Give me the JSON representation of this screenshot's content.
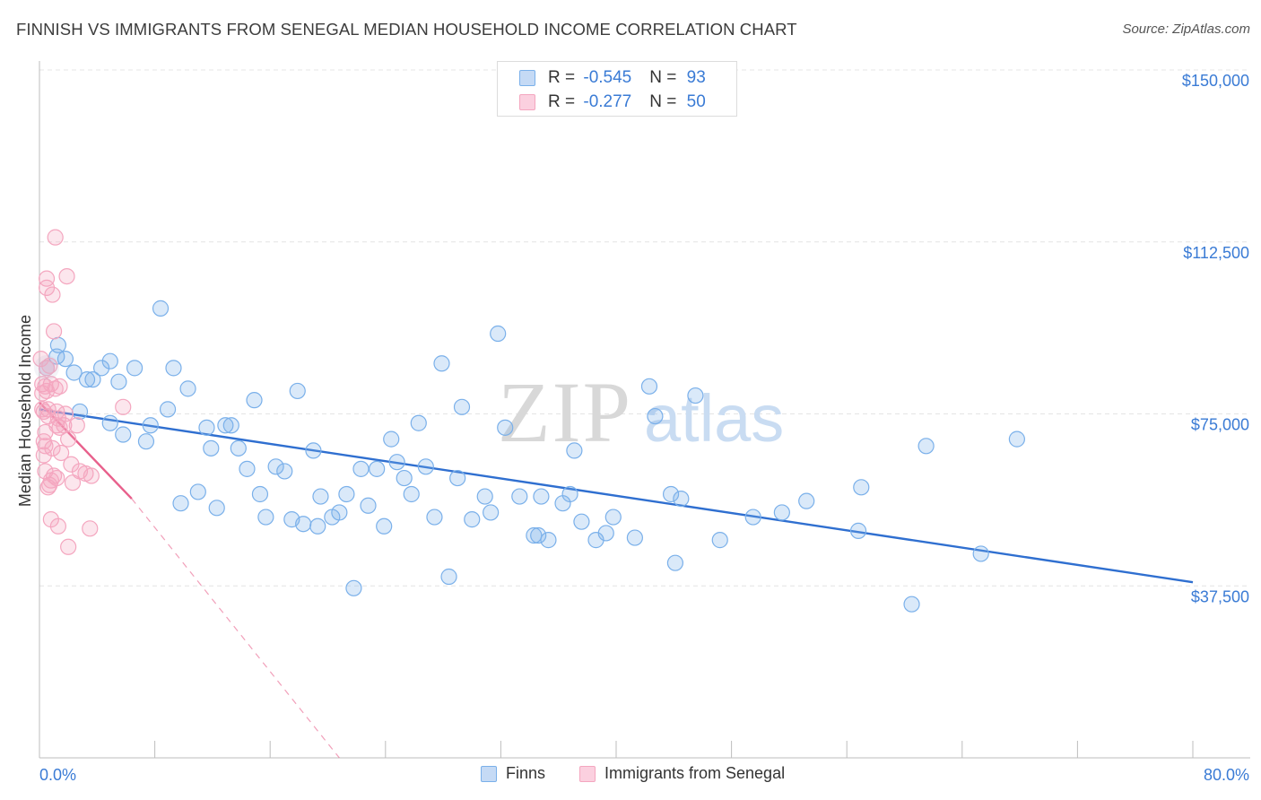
{
  "title": "FINNISH VS IMMIGRANTS FROM SENEGAL MEDIAN HOUSEHOLD INCOME CORRELATION CHART",
  "source": "Source: ZipAtlas.com",
  "watermark": {
    "zip": "ZIP",
    "atlas": "atlas"
  },
  "legend": {
    "rows": [
      {
        "r_label": "R = ",
        "r_value": "-0.545",
        "n_label": "N = ",
        "n_value": "93",
        "color": "#7ab0ea"
      },
      {
        "r_label": "R = ",
        "r_value": "-0.277",
        "n_label": "N = ",
        "n_value": "50",
        "color": "#f4a6bf"
      }
    ]
  },
  "bottom_legend": [
    {
      "label": "Finns",
      "color": "#7ab0ea"
    },
    {
      "label": "Immigrants from Senegal",
      "color": "#f4a6bf"
    }
  ],
  "chart_data": {
    "type": "scatter",
    "title": "FINNISH VS IMMIGRANTS FROM SENEGAL MEDIAN HOUSEHOLD INCOME CORRELATION CHART",
    "xlabel": "",
    "ylabel": "Median Household Income",
    "xlim": [
      0,
      80
    ],
    "ylim": [
      0,
      155000
    ],
    "x_tick_labels": [
      "0.0%",
      "80.0%"
    ],
    "y_ticks": [
      37500,
      75000,
      112500,
      150000
    ],
    "y_tick_labels": [
      "$37,500",
      "$75,000",
      "$112,500",
      "$150,000"
    ],
    "grid": true,
    "series": [
      {
        "name": "Finns",
        "color": "#7ab0ea",
        "line_color": "#2f6fd0",
        "trend": {
          "x": [
            0,
            80
          ],
          "y": [
            76000,
            38300
          ]
        },
        "points": [
          [
            0.5,
            85000
          ],
          [
            1.3,
            90000
          ],
          [
            1.2,
            87500
          ],
          [
            1.8,
            87000
          ],
          [
            2.4,
            84000
          ],
          [
            2.8,
            75500
          ],
          [
            3.3,
            82500
          ],
          [
            3.7,
            82500
          ],
          [
            4.3,
            85000
          ],
          [
            4.9,
            86500
          ],
          [
            5.5,
            82000
          ],
          [
            5.8,
            70500
          ],
          [
            4.9,
            73000
          ],
          [
            6.6,
            85000
          ],
          [
            7.4,
            69000
          ],
          [
            7.7,
            72500
          ],
          [
            8.4,
            98000
          ],
          [
            8.9,
            76000
          ],
          [
            9.3,
            85000
          ],
          [
            10.3,
            80500
          ],
          [
            9.8,
            55500
          ],
          [
            11.0,
            58000
          ],
          [
            11.6,
            72000
          ],
          [
            11.9,
            67500
          ],
          [
            12.3,
            54500
          ],
          [
            12.9,
            72500
          ],
          [
            13.3,
            72500
          ],
          [
            13.8,
            67500
          ],
          [
            14.4,
            63000
          ],
          [
            14.9,
            78000
          ],
          [
            15.3,
            57500
          ],
          [
            15.7,
            52500
          ],
          [
            16.4,
            63500
          ],
          [
            17.0,
            62500
          ],
          [
            17.5,
            52000
          ],
          [
            17.9,
            80000
          ],
          [
            18.3,
            51000
          ],
          [
            19.0,
            67000
          ],
          [
            19.5,
            57000
          ],
          [
            19.3,
            50500
          ],
          [
            20.3,
            52500
          ],
          [
            20.8,
            53500
          ],
          [
            21.3,
            57500
          ],
          [
            21.8,
            37000
          ],
          [
            22.3,
            63000
          ],
          [
            22.8,
            55000
          ],
          [
            23.4,
            63000
          ],
          [
            23.9,
            50500
          ],
          [
            24.4,
            69500
          ],
          [
            24.8,
            64500
          ],
          [
            25.3,
            61000
          ],
          [
            25.8,
            57500
          ],
          [
            26.3,
            73000
          ],
          [
            26.8,
            63500
          ],
          [
            27.4,
            52500
          ],
          [
            27.9,
            86000
          ],
          [
            28.4,
            39500
          ],
          [
            29.0,
            61000
          ],
          [
            29.3,
            76500
          ],
          [
            30.0,
            52000
          ],
          [
            30.9,
            57000
          ],
          [
            31.3,
            53500
          ],
          [
            31.8,
            92500
          ],
          [
            32.3,
            72000
          ],
          [
            33.3,
            57000
          ],
          [
            34.3,
            48500
          ],
          [
            34.6,
            48500
          ],
          [
            34.8,
            57000
          ],
          [
            35.3,
            47500
          ],
          [
            36.3,
            55500
          ],
          [
            36.8,
            57500
          ],
          [
            37.1,
            67000
          ],
          [
            37.6,
            51500
          ],
          [
            38.6,
            47500
          ],
          [
            39.3,
            49000
          ],
          [
            39.8,
            52500
          ],
          [
            41.3,
            48000
          ],
          [
            42.3,
            81000
          ],
          [
            42.7,
            74500
          ],
          [
            43.8,
            57500
          ],
          [
            44.1,
            42500
          ],
          [
            44.5,
            56500
          ],
          [
            45.5,
            79000
          ],
          [
            47.2,
            47500
          ],
          [
            49.5,
            52500
          ],
          [
            51.5,
            53500
          ],
          [
            53.2,
            56000
          ],
          [
            56.8,
            49500
          ],
          [
            57.0,
            59000
          ],
          [
            60.5,
            33500
          ],
          [
            61.5,
            68000
          ],
          [
            65.3,
            44500
          ],
          [
            67.8,
            69500
          ]
        ]
      },
      {
        "name": "Immigrants from Senegal",
        "color": "#f4a6bf",
        "line_color": "#e8608c",
        "trend": {
          "x": [
            0,
            6.4
          ],
          "y": [
            77500,
            56500
          ]
        },
        "trend_extension": {
          "x": [
            6.4,
            20.8
          ],
          "y": [
            56500,
            0
          ]
        },
        "points": [
          [
            0.1,
            87000
          ],
          [
            0.2,
            81500
          ],
          [
            0.2,
            79500
          ],
          [
            0.3,
            75500
          ],
          [
            0.4,
            71000
          ],
          [
            0.4,
            68000
          ],
          [
            0.4,
            62500
          ],
          [
            0.5,
            104500
          ],
          [
            0.5,
            102500
          ],
          [
            0.5,
            85000
          ],
          [
            0.5,
            80000
          ],
          [
            0.6,
            76000
          ],
          [
            0.6,
            74500
          ],
          [
            0.7,
            59500
          ],
          [
            0.8,
            52000
          ],
          [
            0.8,
            60500
          ],
          [
            0.8,
            81500
          ],
          [
            0.9,
            101000
          ],
          [
            1.0,
            93000
          ],
          [
            1.1,
            113500
          ],
          [
            1.1,
            80500
          ],
          [
            1.2,
            75500
          ],
          [
            1.2,
            72500
          ],
          [
            1.2,
            61000
          ],
          [
            1.3,
            50500
          ],
          [
            1.4,
            81000
          ],
          [
            1.4,
            72000
          ],
          [
            1.5,
            66500
          ],
          [
            1.7,
            72500
          ],
          [
            1.8,
            75000
          ],
          [
            1.9,
            105000
          ],
          [
            2.0,
            69500
          ],
          [
            2.2,
            64000
          ],
          [
            2.3,
            60000
          ],
          [
            2.6,
            72500
          ],
          [
            2.8,
            62500
          ],
          [
            3.2,
            62000
          ],
          [
            3.5,
            50000
          ],
          [
            3.6,
            61500
          ],
          [
            5.8,
            76500
          ],
          [
            0.3,
            69000
          ],
          [
            0.6,
            59000
          ],
          [
            0.9,
            67500
          ],
          [
            0.2,
            76000
          ],
          [
            1.0,
            61500
          ],
          [
            1.3,
            74000
          ],
          [
            2.0,
            46000
          ],
          [
            0.4,
            81000
          ],
          [
            0.7,
            85500
          ],
          [
            0.3,
            66000
          ]
        ]
      }
    ]
  }
}
